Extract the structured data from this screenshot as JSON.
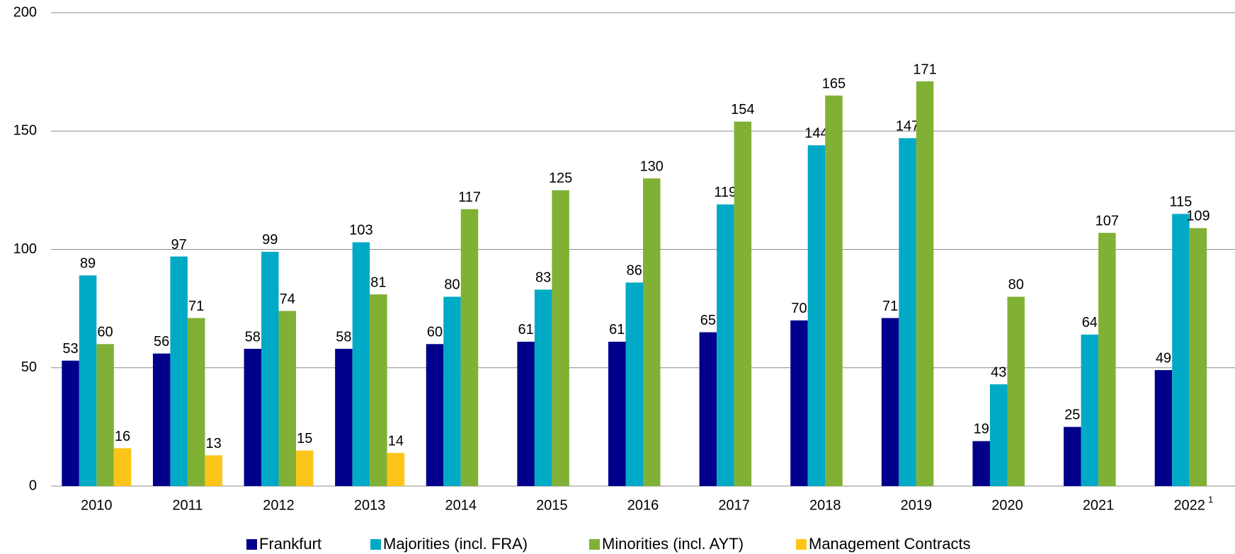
{
  "chart_data": {
    "type": "bar",
    "categories": [
      "2010",
      "2011",
      "2012",
      "2013",
      "2014",
      "2015",
      "2016",
      "2017",
      "2018",
      "2019",
      "2020",
      "2021",
      "2022"
    ],
    "category_superscripts": [
      null,
      null,
      null,
      null,
      null,
      null,
      null,
      null,
      null,
      null,
      null,
      null,
      "1"
    ],
    "series": [
      {
        "name": "Frankfurt",
        "color": "#00008b",
        "values": [
          53,
          56,
          58,
          58,
          60,
          61,
          61,
          65,
          70,
          71,
          19,
          25,
          49
        ]
      },
      {
        "name": "Majorities (incl. FRA)",
        "color": "#00aac6",
        "values": [
          89,
          97,
          99,
          103,
          80,
          83,
          86,
          119,
          144,
          147,
          43,
          64,
          115
        ]
      },
      {
        "name": "Minorities (incl. AYT)",
        "color": "#80b135",
        "values": [
          60,
          71,
          74,
          81,
          117,
          125,
          130,
          154,
          165,
          171,
          80,
          107,
          109
        ]
      },
      {
        "name": "Management Contracts",
        "color": "#fcc519",
        "values": [
          16,
          13,
          15,
          14,
          null,
          null,
          null,
          null,
          null,
          null,
          null,
          null,
          null
        ]
      }
    ],
    "ylim": [
      0,
      200
    ],
    "yticks": [
      0,
      50,
      100,
      150,
      200
    ],
    "grid": true,
    "legend": "bottom"
  }
}
